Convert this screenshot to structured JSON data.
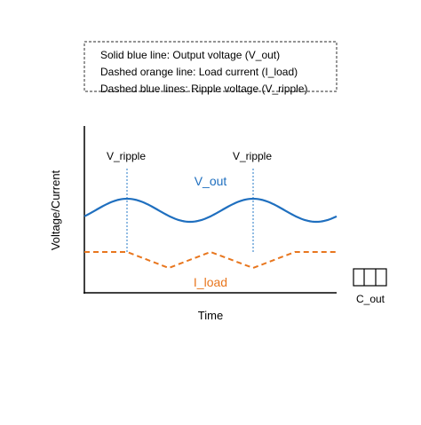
{
  "legend": {
    "line1": "Solid blue line: Output voltage (V_out)",
    "line2": "Dashed orange line: Load current (I_load)",
    "line3": "Dashed blue lines: Ripple voltage (V_ripple)"
  },
  "axes": {
    "ylabel": "Voltage/Current",
    "xlabel": "Time"
  },
  "labels": {
    "ripple_left": "V_ripple",
    "ripple_right": "V_ripple",
    "vout": "V_out",
    "iload": "I_load",
    "capacitor": "C_out"
  },
  "colors": {
    "vout": "#1f6fbf",
    "iload": "#e8761e",
    "ripple": "#4a90d0",
    "axis": "#000000",
    "legend_border": "#555555"
  }
}
